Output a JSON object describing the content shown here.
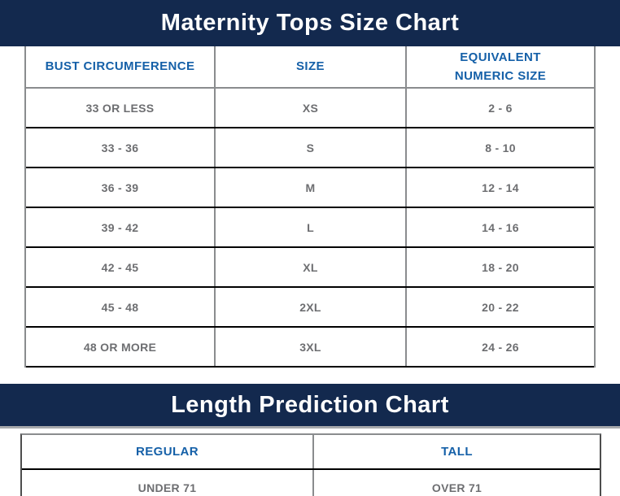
{
  "colors": {
    "navy": "#13294E",
    "blue": "#1560A8",
    "gray_text": "#6D6E71",
    "border_gray": "#8A8C8E",
    "border_dark": "#4D4D4D",
    "border_black": "#000000",
    "banner_underline": "#A7A9AC"
  },
  "size_chart": {
    "title": "Maternity Tops Size Chart",
    "columns": [
      "BUST CIRCUMFERENCE",
      "SIZE",
      "EQUIVALENT\nNUMERIC SIZE"
    ],
    "rows": [
      [
        "33 OR LESS",
        "XS",
        "2 - 6"
      ],
      [
        "33 - 36",
        "S",
        "8 - 10"
      ],
      [
        "36 - 39",
        "M",
        "12 - 14"
      ],
      [
        "39 - 42",
        "L",
        "14 - 16"
      ],
      [
        "42 - 45",
        "XL",
        "18 - 20"
      ],
      [
        "45 - 48",
        "2XL",
        "20 - 22"
      ],
      [
        "48 OR MORE",
        "3XL",
        "24 - 26"
      ]
    ]
  },
  "length_chart": {
    "title": "Length Prediction Chart",
    "columns": [
      "REGULAR",
      "TALL"
    ],
    "rows": [
      [
        "UNDER 71",
        "OVER 71"
      ]
    ]
  }
}
